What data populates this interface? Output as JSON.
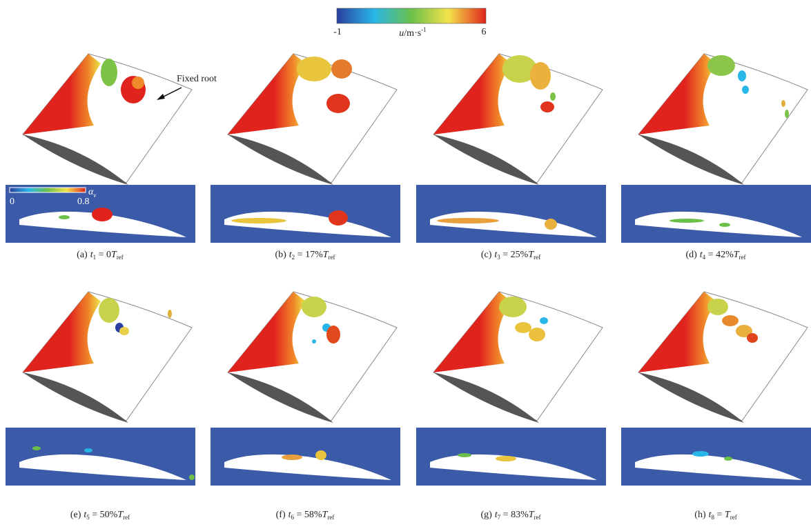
{
  "colorbar": {
    "min": "-1",
    "max": "6",
    "var": "u",
    "unit": "/m·s",
    "exp": "-1"
  },
  "annotation": "Fixed root",
  "inset_colorbar": {
    "min": "0",
    "max": "0.8",
    "var": "α",
    "sub": "v"
  },
  "panels": [
    {
      "letter": "(a)",
      "t": "t",
      "sub": "1",
      "eq": " = 0",
      "T": "T",
      "ref": "ref"
    },
    {
      "letter": "(b)",
      "t": "t",
      "sub": "2",
      "eq": " = 17%",
      "T": "T",
      "ref": "ref"
    },
    {
      "letter": "(c)",
      "t": "t",
      "sub": "3",
      "eq": " = 25%",
      "T": "T",
      "ref": "ref"
    },
    {
      "letter": "(d)",
      "t": "t",
      "sub": "4",
      "eq": " = 42%",
      "T": "T",
      "ref": "ref"
    },
    {
      "letter": "(e)",
      "t": "t",
      "sub": "5",
      "eq": " = 50%",
      "T": "T",
      "ref": "ref"
    },
    {
      "letter": "(f)",
      "t": "t",
      "sub": "6",
      "eq": " = 58%",
      "T": "T",
      "ref": "ref"
    },
    {
      "letter": "(g)",
      "t": "t",
      "sub": "7",
      "eq": " = 83%",
      "T": "T",
      "ref": "ref"
    },
    {
      "letter": "(h)",
      "t": "t",
      "sub": "8",
      "eq": " = ",
      "T": "T",
      "ref": "ref"
    }
  ]
}
